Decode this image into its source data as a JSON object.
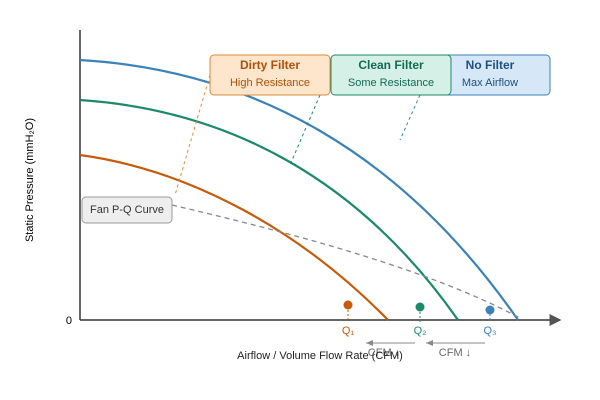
{
  "axes": {
    "y_label": "Static Pressure (mmH₂O)",
    "x_label": "Airflow / Volume Flow Rate (CFM)",
    "origin": "0"
  },
  "callouts": [
    {
      "title": "Dirty Filter",
      "subtitle": "High Resistance"
    },
    {
      "title": "Clean Filter",
      "subtitle": "Some Resistance"
    },
    {
      "title": "No Filter",
      "subtitle": "Max Airflow"
    }
  ],
  "fan_curve_label": "Fan P-Q Curve",
  "points": [
    "Q₁",
    "Q₂",
    "Q₃"
  ],
  "shift_labels": [
    "CFM ↓",
    "CFM ↓"
  ]
}
